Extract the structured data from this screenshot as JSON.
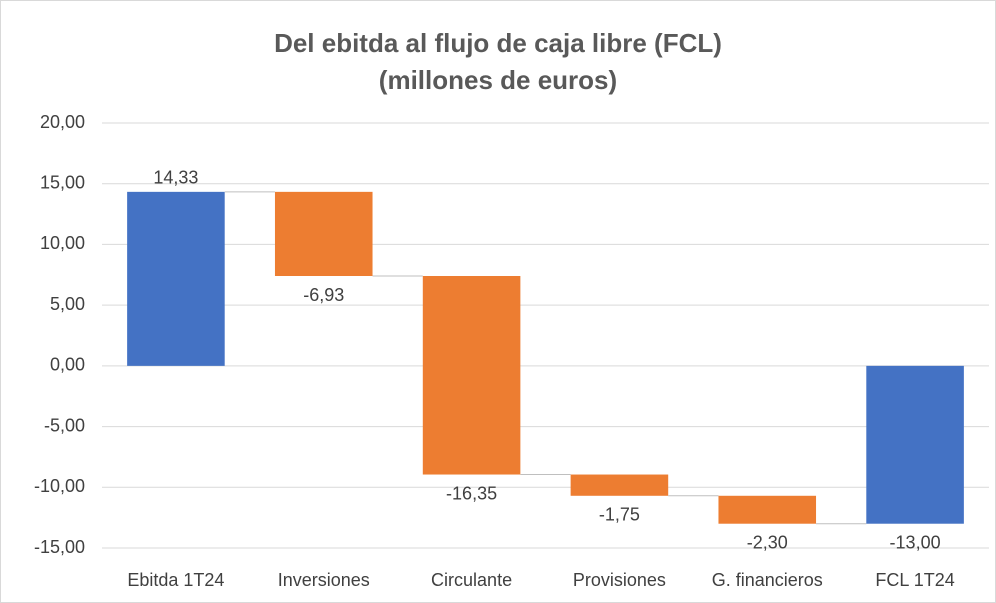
{
  "chart_data": {
    "type": "waterfall",
    "title": "Del ebitda al flujo de caja libre (FCL)",
    "subtitle": "(millones de euros)",
    "categories": [
      "Ebitda 1T24",
      "Inversiones",
      "Circulante",
      "Provisiones",
      "G. financieros",
      "FCL 1T24"
    ],
    "values": [
      14.33,
      -6.93,
      -16.35,
      -1.75,
      -2.3,
      -13.0
    ],
    "value_labels": [
      "14,33",
      "-6,93",
      "-16,35",
      "-1,75",
      "-2,30",
      "-13,00"
    ],
    "is_total": [
      true,
      false,
      false,
      false,
      false,
      true
    ],
    "total_color": "#4472c4",
    "change_color": "#ed7d31",
    "ylim": [
      -15,
      20
    ],
    "yticks": [
      {
        "value": -15,
        "label": "-15,00"
      },
      {
        "value": -10,
        "label": "-10,00"
      },
      {
        "value": -5,
        "label": "-5,00"
      },
      {
        "value": 0,
        "label": "0,00"
      },
      {
        "value": 5,
        "label": "5,00"
      },
      {
        "value": 10,
        "label": "10,00"
      },
      {
        "value": 15,
        "label": "15,00"
      },
      {
        "value": 20,
        "label": "20,00"
      }
    ],
    "grid": true
  }
}
